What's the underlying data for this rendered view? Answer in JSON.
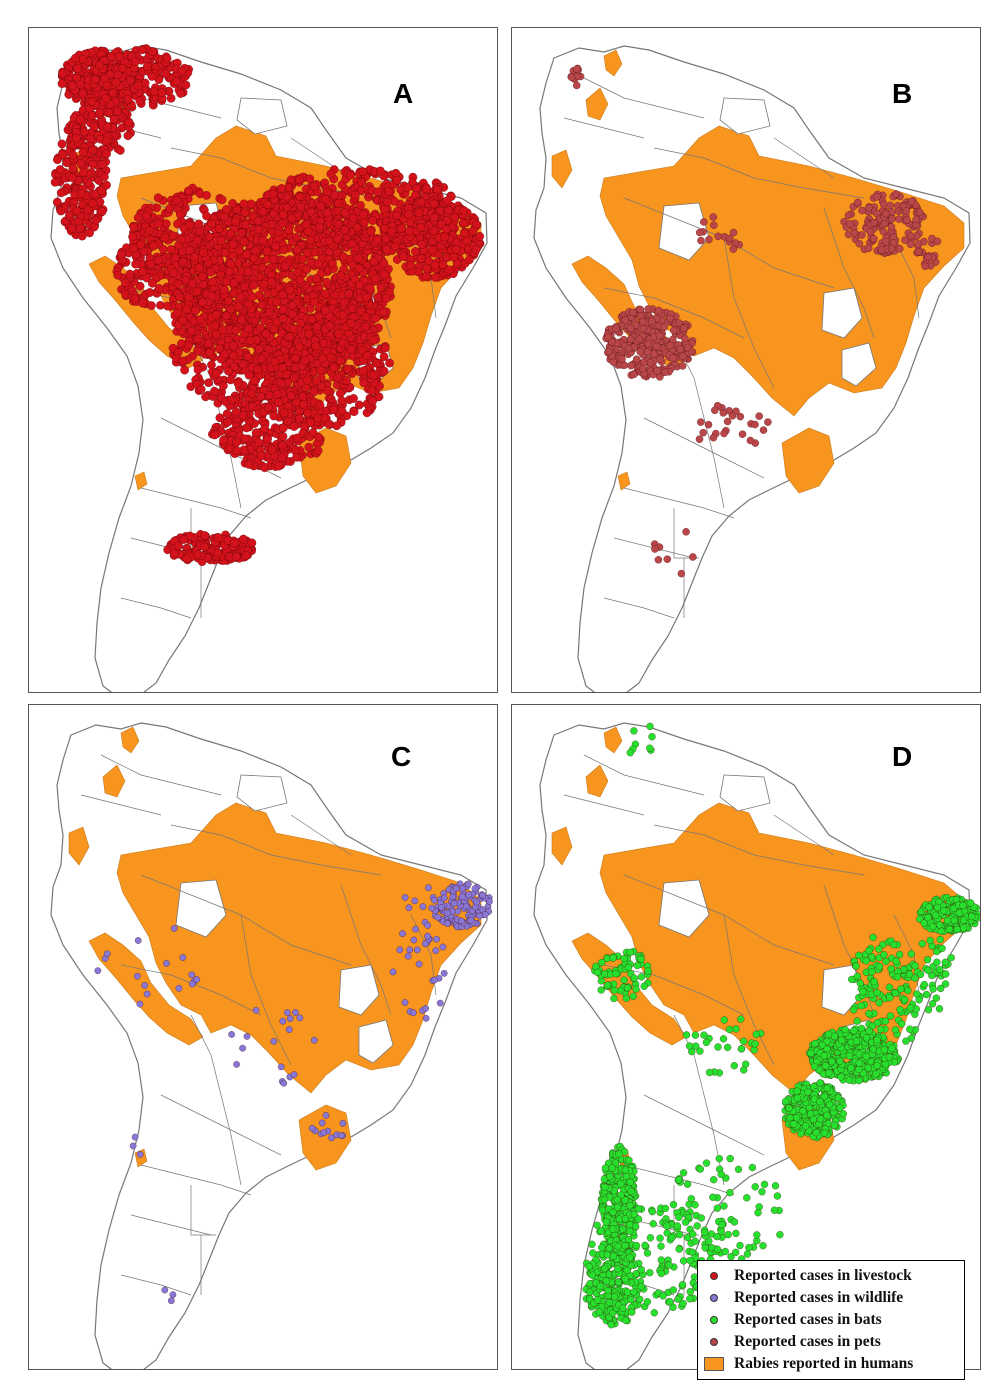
{
  "colors": {
    "livestock": "#d4121b",
    "wildlife": "#8877d4",
    "bats": "#27e02e",
    "pets": "#b9474a",
    "humans": "#f7951f",
    "boundary": "#777777"
  },
  "panels": [
    {
      "label": "A",
      "category": "livestock"
    },
    {
      "label": "B",
      "category": "pets"
    },
    {
      "label": "C",
      "category": "wildlife"
    },
    {
      "label": "D",
      "category": "bats"
    }
  ],
  "legend": {
    "items": [
      {
        "key": "livestock",
        "label": "Reported cases in livestock",
        "symbol": "dot"
      },
      {
        "key": "wildlife",
        "label": "Reported cases in wildlife",
        "symbol": "dot"
      },
      {
        "key": "bats",
        "label": "Reported cases in bats",
        "symbol": "dot"
      },
      {
        "key": "pets",
        "label": "Reported cases in pets",
        "symbol": "dot"
      },
      {
        "key": "humans",
        "label": "Rabies reported in humans",
        "symbol": "rect"
      }
    ]
  }
}
